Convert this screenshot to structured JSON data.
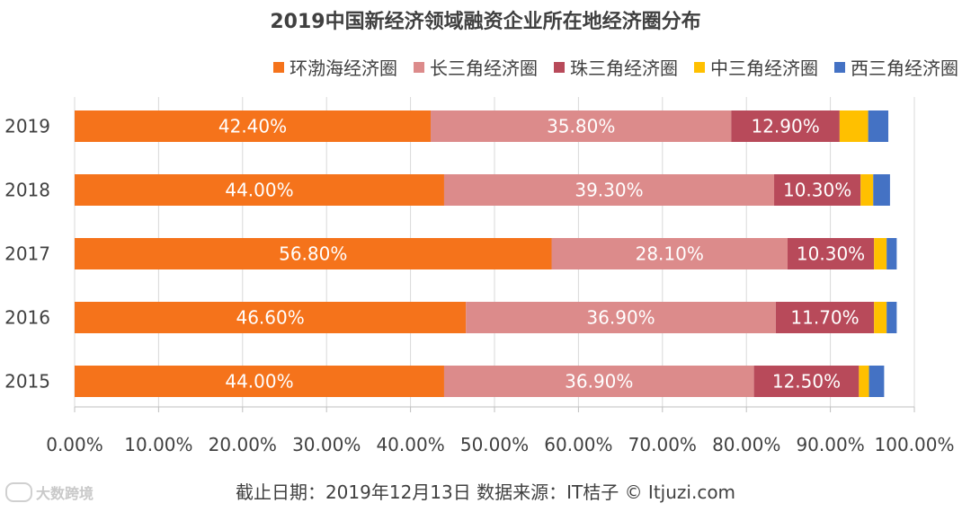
{
  "chart_data": {
    "type": "bar",
    "orientation": "horizontal",
    "stacked": true,
    "title": "2019中国新经济领域融资企业所在地经济圈分布",
    "categories": [
      "2019",
      "2018",
      "2017",
      "2016",
      "2015"
    ],
    "series": [
      {
        "name": "环渤海经济圈",
        "color": "#F5731B",
        "values": [
          42.4,
          44.0,
          56.8,
          46.6,
          44.0
        ],
        "labels": [
          "42.40%",
          "44.00%",
          "56.80%",
          "46.60%",
          "44.00%"
        ]
      },
      {
        "name": "长三角经济圈",
        "color": "#DC8B8B",
        "values": [
          35.8,
          39.3,
          28.1,
          36.9,
          36.9
        ],
        "labels": [
          "35.80%",
          "39.30%",
          "28.10%",
          "36.90%",
          "36.90%"
        ]
      },
      {
        "name": "珠三角经济圈",
        "color": "#B84A5A",
        "values": [
          12.9,
          10.3,
          10.3,
          11.7,
          12.5
        ],
        "labels": [
          "12.90%",
          "10.30%",
          "10.30%",
          "11.70%",
          "12.50%"
        ]
      },
      {
        "name": "中三角经济圈",
        "color": "#FFC000",
        "values": [
          3.4,
          1.5,
          1.5,
          1.5,
          1.2
        ],
        "labels": [
          "",
          "",
          "",
          "",
          ""
        ]
      },
      {
        "name": "西三角经济圈",
        "color": "#4472C4",
        "values": [
          2.4,
          2.0,
          1.2,
          1.2,
          1.8
        ],
        "labels": [
          "",
          "",
          "",
          "",
          ""
        ]
      }
    ],
    "xlim": [
      0,
      100
    ],
    "xticks": [
      "0.00%",
      "10.00%",
      "20.00%",
      "30.00%",
      "40.00%",
      "50.00%",
      "60.00%",
      "70.00%",
      "80.00%",
      "90.00%",
      "100.00%"
    ],
    "legend_position": "top-right",
    "grid": "vertical"
  },
  "footer": "截止日期：2019年12月13日    数据来源：IT桔子 © Itjuzi.com",
  "watermark": "大数跨境"
}
